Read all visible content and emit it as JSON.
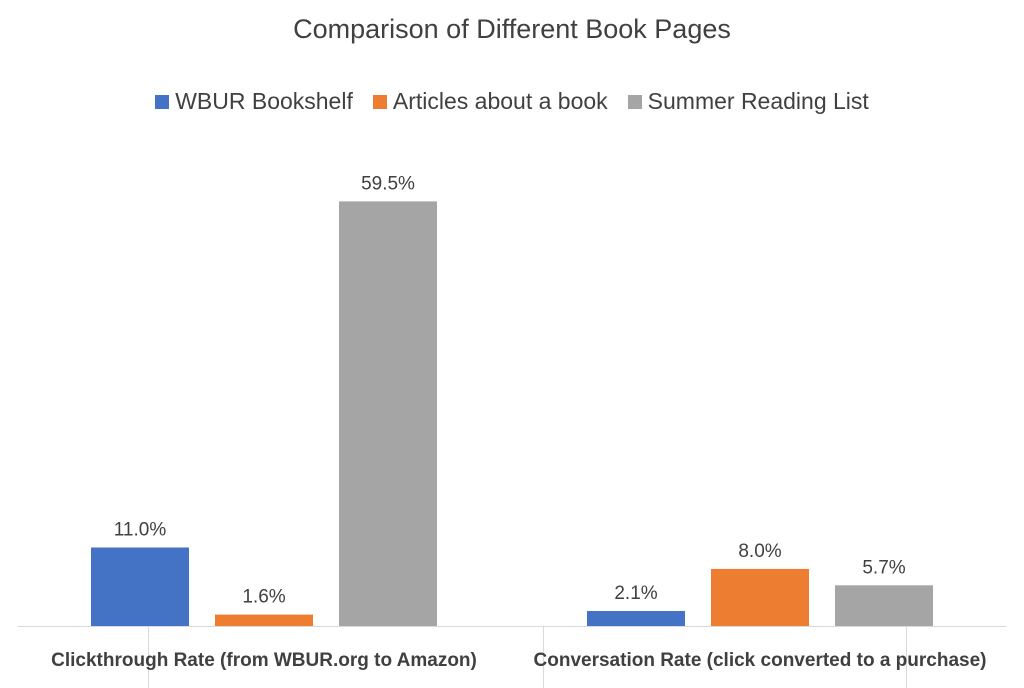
{
  "chart_data": {
    "type": "bar",
    "title": "Comparison of Different Book Pages",
    "categories": [
      "Clickthrough Rate (from WBUR.org to Amazon)",
      "Conversation Rate (click converted to a purchase)"
    ],
    "series": [
      {
        "name": "WBUR Bookshelf",
        "values": [
          11.0,
          2.1
        ],
        "labels": [
          "11.0%",
          "2.1%"
        ],
        "color": "#4472c4"
      },
      {
        "name": "Articles about a book",
        "values": [
          1.6,
          8.0
        ],
        "labels": [
          "1.6%",
          "8.0%"
        ],
        "color": "#ed7d31"
      },
      {
        "name": "Summer Reading List",
        "values": [
          59.5,
          5.7
        ],
        "labels": [
          "59.5%",
          "5.7%"
        ],
        "color": "#a5a5a5"
      }
    ],
    "xlabel": "",
    "ylabel": "",
    "ylim": [
      0,
      66
    ],
    "legend_position": "top",
    "grid": false
  }
}
